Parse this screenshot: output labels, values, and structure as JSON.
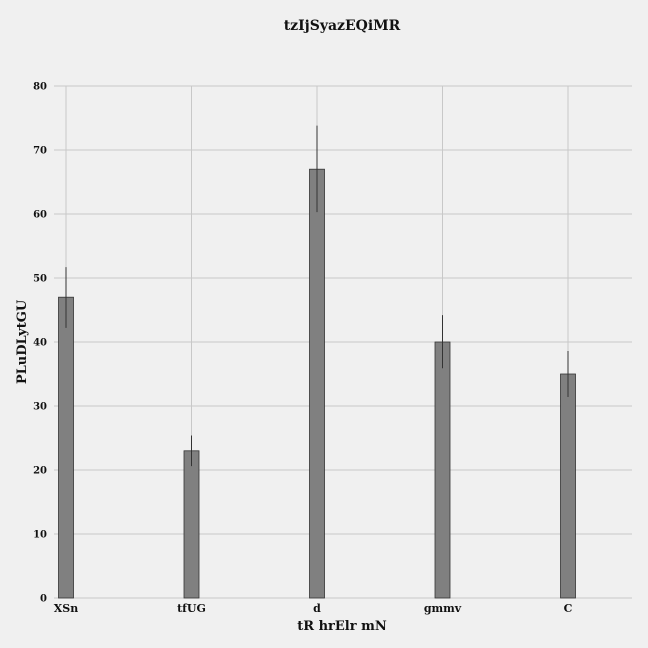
{
  "chart_data": {
    "type": "bar",
    "title": "tzIjSyazEQiMR",
    "xlabel": "tR  hrElr mN",
    "ylabel": "PLuDLytGU",
    "categories": [
      "XSn",
      "tfUG",
      "d",
      "gmmv",
      "C"
    ],
    "values": [
      47,
      23,
      67,
      40,
      35
    ],
    "error_low": [
      42.2,
      20.6,
      60.3,
      35.9,
      31.4
    ],
    "error_high": [
      51.7,
      25.4,
      73.8,
      44.2,
      38.6
    ],
    "ylim": [
      0,
      80
    ],
    "yticks": [
      0,
      10,
      20,
      30,
      40,
      50,
      60,
      70,
      80
    ],
    "grid": true,
    "colors": {
      "bar": "#808080",
      "bar_edge": "#333333",
      "grid": "#c8c8c8",
      "background": "#f0f0f0"
    }
  }
}
